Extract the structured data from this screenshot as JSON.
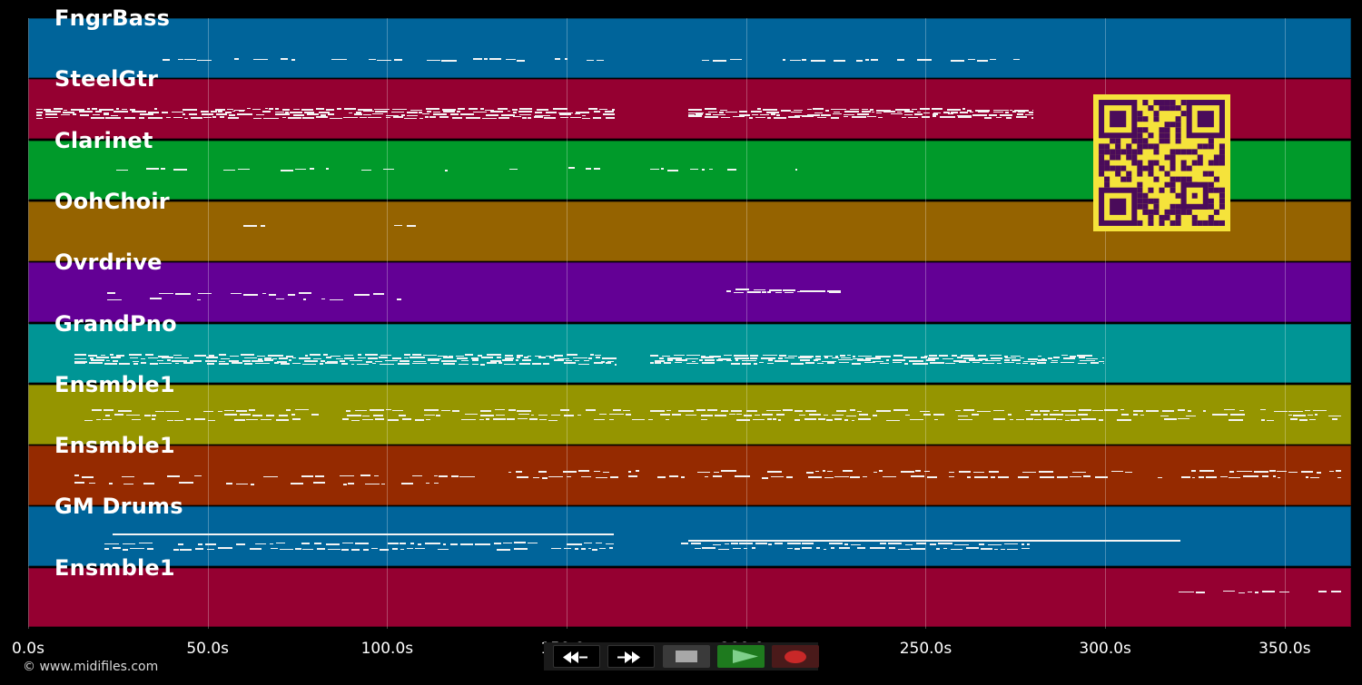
{
  "tracks": [
    {
      "name": "FngrBass",
      "color": "#00649a"
    },
    {
      "name": "SteelGtr",
      "color": "#950031"
    },
    {
      "name": "Clarinet",
      "color": "#009a2a"
    },
    {
      "name": "OohChoir",
      "color": "#956300"
    },
    {
      "name": "Ovrdrive",
      "color": "#630095"
    },
    {
      "name": "GrandPno",
      "color": "#009595"
    },
    {
      "name": "Ensmble1",
      "color": "#959500"
    },
    {
      "name": "Ensmble1",
      "color": "#952a00"
    },
    {
      "name": "GM Drums",
      "color": "#00649a"
    },
    {
      "name": "Ensmble1",
      "color": "#950031"
    }
  ],
  "time_axis": {
    "ticks": [
      "0.0s",
      "50.0s",
      "100.0s",
      "150.0s",
      "200.0s",
      "250.0s",
      "300.0s",
      "350.0s"
    ],
    "max_seconds": 368.5
  },
  "copyright": "© www.midifiles.com",
  "transport": {
    "rewind_icon": "rewind-icon",
    "fast_forward_icon": "fast-forward-icon",
    "stop_icon": "stop-icon",
    "play_icon": "play-icon",
    "record_icon": "record-icon",
    "play_color": "#1e7a1e",
    "record_color": "#c82828"
  },
  "qr_colors": {
    "background": "#f5e33b",
    "module": "#4a0b5a"
  },
  "note_color": "#f4f4f4"
}
